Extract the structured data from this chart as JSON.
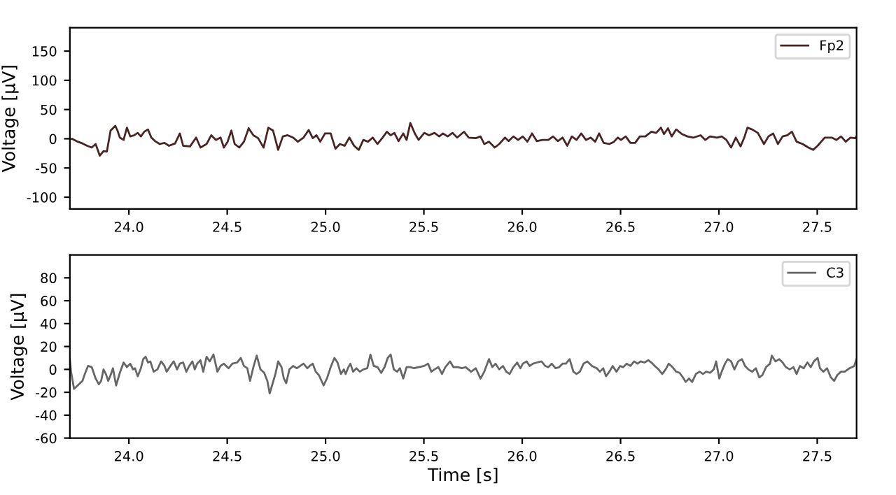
{
  "chart_data": [
    {
      "type": "line",
      "ylabel": "Voltage [μV]",
      "xlim": [
        23.7,
        27.7
      ],
      "ylim": [
        -120,
        190
      ],
      "xticks": [
        {
          "value": 24,
          "label": "24.0"
        },
        24.5,
        {
          "value": 25,
          "label": "25.0"
        },
        25.5,
        {
          "value": 26,
          "label": "26.0"
        },
        26.5,
        {
          "value": 27,
          "label": "27.0"
        },
        27.5
      ],
      "yticks": [
        -100,
        -50,
        0,
        50,
        100,
        150
      ],
      "legend": "top right",
      "grid": false,
      "series": [
        {
          "name": "Fp2",
          "color": "#4a2424",
          "x": [
            23.7,
            23.711,
            23.74,
            23.764,
            23.788,
            23.811,
            23.831,
            23.852,
            23.871,
            23.888,
            23.907,
            23.931,
            23.942,
            23.954,
            23.973,
            23.99,
            24.007,
            24.026,
            24.045,
            24.061,
            24.078,
            24.097,
            24.114,
            24.133,
            24.157,
            24.181,
            24.204,
            24.235,
            24.259,
            24.276,
            24.311,
            24.342,
            24.364,
            24.395,
            24.419,
            24.442,
            24.466,
            24.483,
            24.502,
            24.521,
            24.538,
            24.561,
            24.585,
            24.609,
            24.633,
            24.657,
            24.685,
            24.709,
            24.733,
            24.759,
            24.783,
            24.807,
            24.835,
            24.859,
            24.888,
            24.914,
            24.935,
            24.954,
            24.973,
            24.997,
            25.026,
            25.05,
            25.073,
            25.097,
            25.121,
            25.145,
            25.169,
            25.192,
            25.216,
            25.24,
            25.264,
            25.288,
            25.312,
            25.331,
            25.35,
            25.371,
            25.395,
            25.412,
            25.431,
            25.454,
            25.473,
            25.502,
            25.526,
            25.554,
            25.578,
            25.597,
            25.621,
            25.645,
            25.669,
            25.704,
            25.728,
            25.764,
            25.788,
            25.807,
            25.831,
            25.86,
            25.883,
            25.912,
            25.931,
            25.955,
            25.979,
            26.003,
            26.026,
            26.05,
            26.074,
            26.103,
            26.133,
            26.157,
            26.181,
            26.205,
            26.229,
            26.252,
            26.276,
            26.3,
            26.324,
            26.348,
            26.371,
            26.391,
            26.414,
            26.443,
            26.467,
            26.486,
            26.502,
            26.526,
            26.55,
            26.574,
            26.598,
            26.626,
            26.657,
            26.681,
            26.705,
            26.721,
            26.741,
            26.76,
            26.783,
            26.812,
            26.84,
            26.871,
            26.907,
            26.931,
            26.955,
            26.99,
            27.014,
            27.038,
            27.062,
            27.086,
            27.11,
            27.129,
            27.145,
            27.169,
            27.198,
            27.229,
            27.252,
            27.276,
            27.3,
            27.324,
            27.348,
            27.371,
            27.395,
            27.426,
            27.455,
            27.479,
            27.502,
            27.538,
            27.574,
            27.598,
            27.621,
            27.645,
            27.669,
            27.693,
            27.7
          ],
          "values": [
            -1,
            0,
            -5,
            -8,
            -12,
            -15,
            -9,
            -29,
            -21,
            -22,
            14,
            22,
            14,
            2,
            -2,
            19,
            4,
            6,
            10,
            4,
            12,
            16,
            2,
            -4,
            -9,
            -7,
            -12,
            -8,
            9,
            -12,
            -13,
            2,
            -15,
            -9,
            6,
            -2,
            2,
            -15,
            -5,
            14,
            -9,
            -15,
            -5,
            18,
            6,
            1,
            -15,
            19,
            14,
            -19,
            4,
            6,
            2,
            -5,
            2,
            15,
            1,
            6,
            -5,
            9,
            9,
            -17,
            -9,
            -12,
            2,
            -12,
            -19,
            -2,
            -5,
            2,
            -9,
            1,
            12,
            6,
            10,
            -4,
            9,
            -2,
            27,
            9,
            -2,
            10,
            6,
            10,
            4,
            9,
            4,
            10,
            2,
            12,
            2,
            1,
            4,
            -9,
            -5,
            -15,
            -9,
            2,
            -4,
            4,
            -2,
            4,
            -5,
            9,
            -4,
            -2,
            -2,
            4,
            -4,
            2,
            -12,
            4,
            -2,
            9,
            -2,
            2,
            -5,
            9,
            -7,
            -9,
            -5,
            2,
            -2,
            4,
            -7,
            -7,
            4,
            4,
            12,
            10,
            19,
            8,
            18,
            4,
            16,
            8,
            4,
            2,
            6,
            -2,
            4,
            2,
            4,
            -2,
            -15,
            2,
            -13,
            2,
            19,
            16,
            10,
            -9,
            4,
            9,
            -9,
            4,
            6,
            12,
            -5,
            -9,
            -15,
            -19,
            -12,
            2,
            2,
            -2,
            4,
            -5,
            2,
            1,
            4
          ]
        }
      ]
    },
    {
      "type": "line",
      "xlabel": "Time [s]",
      "ylabel": "Voltage [μV]",
      "xlim": [
        23.7,
        27.7
      ],
      "ylim": [
        -60,
        100
      ],
      "xticks": [
        {
          "value": 24,
          "label": "24.0"
        },
        24.5,
        {
          "value": 25,
          "label": "25.0"
        },
        25.5,
        {
          "value": 26,
          "label": "26.0"
        },
        26.5,
        {
          "value": 27,
          "label": "27.0"
        },
        27.5
      ],
      "yticks": [
        -60,
        -40,
        -20,
        0,
        20,
        40,
        60,
        80
      ],
      "legend": "top right",
      "grid": false,
      "series": [
        {
          "name": "C3",
          "color": "#666666",
          "x": [
            23.7,
            23.706,
            23.721,
            23.74,
            23.764,
            23.776,
            23.792,
            23.811,
            23.831,
            23.847,
            23.859,
            23.871,
            23.883,
            23.895,
            23.907,
            23.919,
            23.935,
            23.954,
            23.973,
            23.99,
            24.007,
            24.021,
            24.031,
            24.045,
            24.061,
            24.073,
            24.085,
            24.097,
            24.109,
            24.126,
            24.145,
            24.164,
            24.181,
            24.192,
            24.211,
            24.228,
            24.245,
            24.259,
            24.276,
            24.292,
            24.307,
            24.323,
            24.335,
            24.347,
            24.364,
            24.378,
            24.395,
            24.411,
            24.43,
            24.45,
            24.466,
            24.483,
            24.507,
            24.526,
            24.55,
            24.569,
            24.585,
            24.602,
            24.616,
            24.633,
            24.65,
            24.669,
            24.688,
            24.704,
            24.716,
            24.728,
            24.745,
            24.759,
            24.776,
            24.788,
            24.8,
            24.816,
            24.835,
            24.854,
            24.871,
            24.888,
            24.907,
            24.919,
            24.935,
            24.95,
            24.966,
            24.99,
            25.007,
            25.026,
            25.045,
            25.061,
            25.078,
            25.093,
            25.102,
            25.116,
            25.126,
            25.14,
            25.157,
            25.174,
            25.192,
            25.212,
            25.228,
            25.245,
            25.264,
            25.283,
            25.3,
            25.316,
            25.331,
            25.347,
            25.364,
            25.378,
            25.395,
            25.412,
            25.431,
            25.45,
            25.473,
            25.502,
            25.521,
            25.538,
            25.554,
            25.574,
            25.592,
            25.609,
            25.633,
            25.65,
            25.673,
            25.693,
            25.712,
            25.74,
            25.764,
            25.788,
            25.807,
            25.831,
            25.848,
            25.864,
            25.883,
            25.902,
            25.919,
            25.936,
            25.955,
            25.974,
            25.991,
            26.003,
            26.022,
            26.038,
            26.055,
            26.074,
            26.098,
            26.117,
            26.133,
            26.15,
            26.169,
            26.188,
            26.205,
            26.222,
            26.241,
            26.26,
            26.276,
            26.293,
            26.312,
            26.331,
            26.355,
            26.379,
            26.395,
            26.412,
            26.426,
            26.443,
            26.46,
            26.479,
            26.498,
            26.514,
            26.531,
            26.55,
            26.569,
            26.586,
            26.602,
            26.621,
            26.641,
            26.657,
            26.674,
            26.693,
            26.712,
            26.729,
            26.745,
            26.764,
            26.783,
            26.8,
            26.817,
            26.831,
            26.848,
            26.864,
            26.883,
            26.902,
            26.919,
            26.936,
            26.955,
            26.974,
            26.986,
            27.002,
            27.014,
            27.031,
            27.045,
            27.062,
            27.079,
            27.098,
            27.117,
            27.133,
            27.15,
            27.169,
            27.188,
            27.205,
            27.221,
            27.24,
            27.26,
            27.269,
            27.288,
            27.307,
            27.324,
            27.34,
            27.36,
            27.379,
            27.395,
            27.412,
            27.431,
            27.45,
            27.467,
            27.483,
            27.502,
            27.514,
            27.531,
            27.55,
            27.569,
            27.586,
            27.602,
            27.621,
            27.64,
            27.664,
            27.688,
            27.7
          ],
          "values": [
            9,
            -2,
            -17,
            -14,
            -10,
            -4,
            3,
            2,
            -8,
            -13,
            -10,
            0,
            -4,
            -10,
            -5,
            1,
            -14,
            -3,
            6,
            2,
            5,
            0,
            1,
            -6,
            1,
            9,
            11,
            6,
            7,
            -2,
            0,
            7,
            3,
            -2,
            3,
            7,
            0,
            5,
            6,
            -2,
            3,
            7,
            0,
            5,
            8,
            -2,
            11,
            7,
            13,
            -2,
            3,
            5,
            1,
            5,
            6,
            10,
            3,
            1,
            -10,
            2,
            12,
            0,
            -3,
            -10,
            -21,
            -14,
            -4,
            7,
            2,
            -8,
            -12,
            0,
            3,
            1,
            3,
            5,
            1,
            3,
            5,
            -2,
            -5,
            -14,
            -8,
            2,
            10,
            6,
            -4,
            0,
            -4,
            2,
            5,
            -2,
            1,
            -2,
            0,
            1,
            13,
            3,
            2,
            -3,
            2,
            10,
            13,
            0,
            -2,
            1,
            -8,
            2,
            2,
            1,
            2,
            3,
            5,
            -2,
            0,
            2,
            -4,
            2,
            7,
            2,
            2,
            1,
            2,
            -2,
            1,
            -8,
            -2,
            9,
            2,
            5,
            0,
            3,
            -2,
            -4,
            2,
            6,
            1,
            5,
            7,
            3,
            5,
            6,
            7,
            3,
            2,
            5,
            1,
            2,
            5,
            5,
            9,
            -2,
            -4,
            -2,
            5,
            7,
            3,
            1,
            -2,
            1,
            -6,
            -2,
            3,
            -2,
            3,
            2,
            5,
            3,
            7,
            5,
            7,
            6,
            8,
            6,
            3,
            0,
            -4,
            0,
            5,
            2,
            -2,
            -3,
            -7,
            -11,
            -8,
            -11,
            -4,
            -2,
            -4,
            -2,
            -3,
            0,
            7,
            -8,
            -2,
            5,
            9,
            7,
            0,
            7,
            9,
            3,
            0,
            -2,
            1,
            -7,
            -5,
            2,
            5,
            12,
            7,
            9,
            6,
            2,
            0,
            2,
            -4,
            3,
            1,
            6,
            2,
            7,
            10,
            1,
            -2,
            1,
            -7,
            -10,
            -5,
            -2,
            -2,
            1,
            3,
            9
          ]
        }
      ]
    }
  ]
}
